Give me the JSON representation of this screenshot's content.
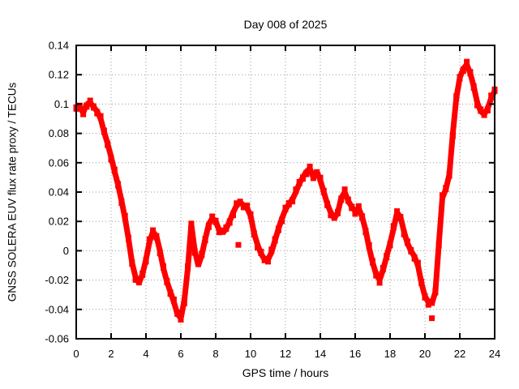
{
  "chart": {
    "title": "Day 008 of 2025",
    "background_color": "#ffffff",
    "text_color": "#000000",
    "border_color": "#000000",
    "grid_color": "#9a9a9a"
  },
  "chart_data": {
    "type": "scatter",
    "title": "Day 008 of 2025",
    "xlabel": "GPS time / hours",
    "ylabel": "GNSS SOLERA EUV flux rate proxy / TECUs",
    "xlim": [
      0,
      24
    ],
    "ylim": [
      -0.06,
      0.14
    ],
    "grid": true,
    "x_tick_values": [
      0,
      2,
      4,
      6,
      8,
      10,
      12,
      14,
      16,
      18,
      20,
      22,
      24
    ],
    "x_tick_labels": [
      "0",
      "2",
      "4",
      "6",
      "8",
      "10",
      "12",
      "14",
      "16",
      "18",
      "20",
      "22",
      "24"
    ],
    "y_tick_values": [
      -0.06,
      -0.04,
      -0.02,
      0,
      0.02,
      0.04,
      0.06,
      0.08,
      0.1,
      0.12,
      0.14
    ],
    "y_tick_labels": [
      "-0.06",
      "-0.04",
      "-0.02",
      "0",
      "0.02",
      "0.04",
      "0.06",
      "0.08",
      "0.1",
      "0.12",
      "0.14"
    ],
    "legend": null,
    "series": [
      {
        "name": "GNSS SOLERA EUV flux rate proxy",
        "color": "#ff0000",
        "marker": "square",
        "points": [
          [
            0,
            0.096
          ],
          [
            0.2,
            0.098
          ],
          [
            0.4,
            0.094
          ],
          [
            0.6,
            0.1
          ],
          [
            0.8,
            0.101
          ],
          [
            1,
            0.098
          ],
          [
            1.2,
            0.095
          ],
          [
            1.4,
            0.09
          ],
          [
            1.6,
            0.081
          ],
          [
            1.8,
            0.073
          ],
          [
            2,
            0.064
          ],
          [
            2.2,
            0.054
          ],
          [
            2.4,
            0.045
          ],
          [
            2.6,
            0.034
          ],
          [
            2.8,
            0.022
          ],
          [
            3,
            0.008
          ],
          [
            3.2,
            -0.008
          ],
          [
            3.4,
            -0.018
          ],
          [
            3.6,
            -0.022
          ],
          [
            3.8,
            -0.016
          ],
          [
            4,
            -0.006
          ],
          [
            4.2,
            0.006
          ],
          [
            4.4,
            0.013
          ],
          [
            4.6,
            0.01
          ],
          [
            4.8,
            0
          ],
          [
            5,
            -0.012
          ],
          [
            5.2,
            -0.021
          ],
          [
            5.4,
            -0.028
          ],
          [
            5.6,
            -0.035
          ],
          [
            5.8,
            -0.043
          ],
          [
            6,
            -0.046
          ],
          [
            6.2,
            -0.034
          ],
          [
            6.4,
            -0.012
          ],
          [
            6.6,
            0.018
          ],
          [
            6.8,
            0
          ],
          [
            7,
            -0.01
          ],
          [
            7.2,
            -0.003
          ],
          [
            7.4,
            0.008
          ],
          [
            7.6,
            0.018
          ],
          [
            7.8,
            0.022
          ],
          [
            8,
            0.02
          ],
          [
            8.2,
            0.014
          ],
          [
            8.4,
            0.012
          ],
          [
            8.6,
            0.015
          ],
          [
            8.8,
            0.02
          ],
          [
            9,
            0.026
          ],
          [
            9.2,
            0.031
          ],
          [
            9.4,
            0.033
          ],
          [
            9.6,
            0.031
          ],
          [
            9.8,
            0.029
          ],
          [
            10,
            0.024
          ],
          [
            10.2,
            0.012
          ],
          [
            10.4,
            0.004
          ],
          [
            10.6,
            -0.002
          ],
          [
            10.8,
            -0.006
          ],
          [
            11,
            -0.006
          ],
          [
            11.2,
            -0.001
          ],
          [
            11.4,
            0.007
          ],
          [
            11.6,
            0.015
          ],
          [
            11.8,
            0.022
          ],
          [
            12,
            0.028
          ],
          [
            12.2,
            0.032
          ],
          [
            12.4,
            0.035
          ],
          [
            12.6,
            0.04
          ],
          [
            12.8,
            0.046
          ],
          [
            13,
            0.05
          ],
          [
            13.2,
            0.054
          ],
          [
            13.4,
            0.056
          ],
          [
            13.6,
            0.05
          ],
          [
            13.8,
            0.054
          ],
          [
            14,
            0.048
          ],
          [
            14.2,
            0.04
          ],
          [
            14.4,
            0.032
          ],
          [
            14.6,
            0.026
          ],
          [
            14.8,
            0.022
          ],
          [
            15,
            0.026
          ],
          [
            15.2,
            0.036
          ],
          [
            15.4,
            0.04
          ],
          [
            15.6,
            0.034
          ],
          [
            15.8,
            0.03
          ],
          [
            16,
            0.027
          ],
          [
            16.2,
            0.029
          ],
          [
            16.4,
            0.023
          ],
          [
            16.6,
            0.014
          ],
          [
            16.8,
            0.002
          ],
          [
            17,
            -0.008
          ],
          [
            17.2,
            -0.016
          ],
          [
            17.4,
            -0.02
          ],
          [
            17.6,
            -0.013
          ],
          [
            17.8,
            -0.004
          ],
          [
            18,
            0.005
          ],
          [
            18.2,
            0.015
          ],
          [
            18.4,
            0.026
          ],
          [
            18.6,
            0.023
          ],
          [
            18.8,
            0.013
          ],
          [
            19,
            0.005
          ],
          [
            19.2,
            0
          ],
          [
            19.4,
            -0.004
          ],
          [
            19.6,
            -0.01
          ],
          [
            19.8,
            -0.022
          ],
          [
            20,
            -0.031
          ],
          [
            20.2,
            -0.035
          ],
          [
            20.4,
            -0.036
          ],
          [
            20.6,
            -0.028
          ],
          [
            20.8,
            0.005
          ],
          [
            21,
            0.036
          ],
          [
            21.2,
            0.042
          ],
          [
            21.4,
            0.052
          ],
          [
            21.6,
            0.08
          ],
          [
            21.8,
            0.104
          ],
          [
            22,
            0.118
          ],
          [
            22.2,
            0.124
          ],
          [
            22.4,
            0.127
          ],
          [
            22.6,
            0.121
          ],
          [
            22.8,
            0.112
          ],
          [
            23,
            0.101
          ],
          [
            23.2,
            0.095
          ],
          [
            23.4,
            0.093
          ],
          [
            23.6,
            0.097
          ],
          [
            23.8,
            0.104
          ],
          [
            24,
            0.109
          ]
        ],
        "outliers": [
          [
            9.3,
            0.004
          ],
          [
            20.4,
            -0.046
          ]
        ]
      }
    ]
  }
}
